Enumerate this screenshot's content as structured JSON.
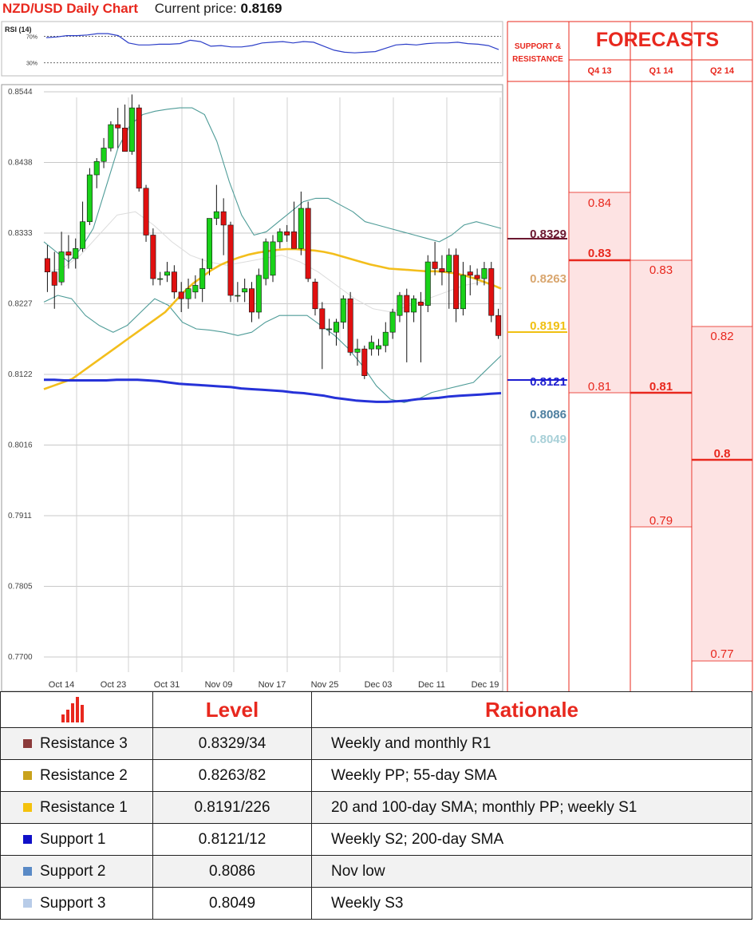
{
  "header": {
    "pair": "NZD/USD Daily Chart",
    "price_label": "Current price:",
    "price": "0.8169"
  },
  "chart_data": [
    {
      "type": "line",
      "title": "RSI (14)",
      "yticks": [
        "70%",
        "30%"
      ],
      "ylim": [
        20,
        85
      ],
      "series": [
        {
          "color": "#2d3fc8",
          "values": [
            68,
            69,
            71,
            71,
            72,
            74,
            74,
            71,
            60,
            57,
            57,
            58,
            58,
            59,
            64,
            62,
            55,
            56,
            54,
            54,
            56,
            60,
            61,
            62,
            60,
            62,
            61,
            55,
            49,
            46,
            45,
            46,
            47,
            52,
            57,
            58,
            57,
            59,
            60,
            60,
            61,
            59,
            58,
            56,
            50
          ]
        }
      ]
    },
    {
      "type": "candlestick",
      "ylim": [
        0.77,
        0.8544
      ],
      "yticks": [
        "0.8544",
        "0.8438",
        "0.8333",
        "0.8227",
        "0.8122",
        "0.8016",
        "0.7911",
        "0.7805",
        "0.7700"
      ],
      "xticks": [
        "Oct 14",
        "Oct 23",
        "Oct 31",
        "Nov 09",
        "Nov 17",
        "Nov 25",
        "Dec 03",
        "Dec 11",
        "Dec 19"
      ],
      "candles": [
        [
          0.8295,
          0.8315,
          0.8245,
          0.8275
        ],
        [
          0.8275,
          0.8305,
          0.822,
          0.8255
        ],
        [
          0.826,
          0.8335,
          0.8255,
          0.8305
        ],
        [
          0.8305,
          0.833,
          0.828,
          0.83
        ],
        [
          0.8295,
          0.8325,
          0.828,
          0.831
        ],
        [
          0.831,
          0.838,
          0.8305,
          0.835
        ],
        [
          0.835,
          0.843,
          0.8345,
          0.842
        ],
        [
          0.842,
          0.8445,
          0.84,
          0.844
        ],
        [
          0.844,
          0.8475,
          0.843,
          0.846
        ],
        [
          0.846,
          0.85,
          0.8455,
          0.8495
        ],
        [
          0.8495,
          0.852,
          0.846,
          0.849
        ],
        [
          0.849,
          0.8525,
          0.846,
          0.8455
        ],
        [
          0.8455,
          0.854,
          0.845,
          0.852
        ],
        [
          0.852,
          0.8525,
          0.8395,
          0.84
        ],
        [
          0.84,
          0.8405,
          0.832,
          0.833
        ],
        [
          0.833,
          0.834,
          0.8255,
          0.8265
        ],
        [
          0.8265,
          0.8275,
          0.8255,
          0.8265
        ],
        [
          0.827,
          0.829,
          0.826,
          0.8275
        ],
        [
          0.8275,
          0.8285,
          0.8235,
          0.8245
        ],
        [
          0.8245,
          0.826,
          0.8215,
          0.8235
        ],
        [
          0.8235,
          0.8265,
          0.822,
          0.825
        ],
        [
          0.8245,
          0.827,
          0.8235,
          0.8255
        ],
        [
          0.825,
          0.8295,
          0.823,
          0.828
        ],
        [
          0.828,
          0.835,
          0.827,
          0.8355
        ],
        [
          0.8355,
          0.8405,
          0.8345,
          0.8365
        ],
        [
          0.8365,
          0.8385,
          0.83,
          0.8345
        ],
        [
          0.8345,
          0.835,
          0.823,
          0.824
        ],
        [
          0.824,
          0.826,
          0.823,
          0.824
        ],
        [
          0.8245,
          0.8265,
          0.823,
          0.825
        ],
        [
          0.825,
          0.826,
          0.82,
          0.8215
        ],
        [
          0.8215,
          0.828,
          0.8205,
          0.827
        ],
        [
          0.8265,
          0.8325,
          0.8255,
          0.832
        ],
        [
          0.827,
          0.833,
          0.826,
          0.832
        ],
        [
          0.832,
          0.834,
          0.831,
          0.8335
        ],
        [
          0.8335,
          0.8345,
          0.832,
          0.833
        ],
        [
          0.8335,
          0.838,
          0.8315,
          0.831
        ],
        [
          0.831,
          0.8395,
          0.83,
          0.837
        ],
        [
          0.837,
          0.838,
          0.826,
          0.8265
        ],
        [
          0.826,
          0.8265,
          0.821,
          0.822
        ],
        [
          0.822,
          0.823,
          0.813,
          0.819
        ],
        [
          0.819,
          0.8205,
          0.818,
          0.819
        ],
        [
          0.8185,
          0.8205,
          0.8165,
          0.82
        ],
        [
          0.82,
          0.824,
          0.819,
          0.8235
        ],
        [
          0.8235,
          0.8245,
          0.815,
          0.8155
        ],
        [
          0.8155,
          0.8175,
          0.8135,
          0.816
        ],
        [
          0.816,
          0.8165,
          0.8115,
          0.812
        ],
        [
          0.816,
          0.818,
          0.815,
          0.817
        ],
        [
          0.816,
          0.8175,
          0.815,
          0.8165
        ],
        [
          0.8165,
          0.82,
          0.8155,
          0.8185
        ],
        [
          0.8185,
          0.822,
          0.8175,
          0.8215
        ],
        [
          0.821,
          0.8245,
          0.82,
          0.824
        ],
        [
          0.824,
          0.825,
          0.814,
          0.8215
        ],
        [
          0.8215,
          0.824,
          0.82,
          0.8235
        ],
        [
          0.823,
          0.8245,
          0.814,
          0.8225
        ],
        [
          0.8225,
          0.83,
          0.8215,
          0.829
        ],
        [
          0.829,
          0.832,
          0.827,
          0.828
        ],
        [
          0.828,
          0.83,
          0.8255,
          0.8275
        ],
        [
          0.8275,
          0.831,
          0.822,
          0.83
        ],
        [
          0.83,
          0.831,
          0.82,
          0.822
        ],
        [
          0.822,
          0.829,
          0.821,
          0.827
        ],
        [
          0.8275,
          0.8285,
          0.824,
          0.827
        ],
        [
          0.827,
          0.828,
          0.8255,
          0.8265
        ],
        [
          0.8265,
          0.829,
          0.8255,
          0.828
        ],
        [
          0.828,
          0.829,
          0.82,
          0.821
        ],
        [
          0.821,
          0.822,
          0.8175,
          0.818
        ]
      ],
      "lines": [
        {
          "color": "#f3be1c",
          "values": [
            0.81,
            0.8105,
            0.811,
            0.8115,
            0.8125,
            0.8135,
            0.8145,
            0.8155,
            0.8165,
            0.8175,
            0.8185,
            0.8195,
            0.8205,
            0.8215,
            0.823,
            0.8245,
            0.8258,
            0.8268,
            0.8278,
            0.8286,
            0.8292,
            0.8297,
            0.8301,
            0.8304,
            0.8306,
            0.8308,
            0.8309,
            0.8309,
            0.8308,
            0.8307,
            0.8305,
            0.8302,
            0.8298,
            0.8294,
            0.829,
            0.8286,
            0.8283,
            0.828,
            0.8279,
            0.8278,
            0.8277,
            0.8276,
            0.8276,
            0.8275,
            0.8273,
            0.827,
            0.8266,
            0.8261,
            0.8256,
            0.825
          ]
        },
        {
          "color": "#2632d8",
          "values": [
            0.8114,
            0.8114,
            0.8113,
            0.8113,
            0.8113,
            0.8113,
            0.8113,
            0.8114,
            0.8114,
            0.8114,
            0.8113,
            0.8112,
            0.811,
            0.8108,
            0.8107,
            0.8106,
            0.8105,
            0.8104,
            0.8103,
            0.8101,
            0.81,
            0.8099,
            0.8098,
            0.8097,
            0.8095,
            0.8094,
            0.8092,
            0.809,
            0.8087,
            0.8085,
            0.8083,
            0.8082,
            0.8081,
            0.8081,
            0.8082,
            0.8083,
            0.8085,
            0.8086,
            0.8087,
            0.8089,
            0.809,
            0.8091,
            0.8092,
            0.8093,
            0.8094
          ]
        },
        {
          "color": "#4f9c98",
          "values": [
            0.832,
            0.8305,
            0.829,
            0.831,
            0.834,
            0.84,
            0.846,
            0.8495,
            0.851,
            0.8515,
            0.8518,
            0.852,
            0.852,
            0.851,
            0.847,
            0.841,
            0.836,
            0.833,
            0.8335,
            0.835,
            0.8365,
            0.838,
            0.8385,
            0.8385,
            0.8375,
            0.8365,
            0.835,
            0.8345,
            0.834,
            0.8335,
            0.833,
            0.8325,
            0.832,
            0.833,
            0.8345,
            0.835,
            0.8345,
            0.834
          ]
        },
        {
          "color": "#4f9c98",
          "values": [
            0.823,
            0.824,
            0.8235,
            0.821,
            0.8195,
            0.8185,
            0.8195,
            0.8215,
            0.8235,
            0.8225,
            0.82,
            0.819,
            0.8188,
            0.8185,
            0.818,
            0.8185,
            0.82,
            0.821,
            0.821,
            0.821,
            0.8195,
            0.818,
            0.816,
            0.8135,
            0.8105,
            0.8085,
            0.808,
            0.8085,
            0.8095,
            0.81,
            0.8105,
            0.811,
            0.813,
            0.815
          ]
        },
        {
          "color": "#dcdcdc",
          "values": [
            0.8275,
            0.828,
            0.83,
            0.833,
            0.836,
            0.8365,
            0.8345,
            0.832,
            0.83,
            0.829,
            0.8285,
            0.829,
            0.8295,
            0.83,
            0.829,
            0.8275,
            0.8255,
            0.8235,
            0.822,
            0.8215,
            0.8225,
            0.8235,
            0.8245,
            0.8255,
            0.826,
            0.825
          ]
        }
      ]
    }
  ],
  "support_resistance": {
    "header": "SUPPORT & RESISTANCE",
    "levels": [
      {
        "label": "0.8329",
        "color": "#6b1830",
        "bold": true
      },
      {
        "label": "0.8263",
        "color": "#d9a66e",
        "bold": true
      },
      {
        "label": "0.8191",
        "color": "#f0c012",
        "bold": true
      },
      {
        "label": "0.8121",
        "color": "#1c1cd0",
        "bold": true
      },
      {
        "label": "0.8086",
        "color": "#4e7fa0",
        "bold": true
      },
      {
        "label": "0.8049",
        "color": "#a8d0d8",
        "bold": true
      }
    ]
  },
  "forecasts": {
    "title": "FORECASTS",
    "columns": [
      {
        "label": "Q4 13",
        "high": "0.84",
        "main": "0.83",
        "low": "0.81"
      },
      {
        "label": "Q1 14",
        "high": "0.83",
        "main": "0.81",
        "low": "0.79"
      },
      {
        "label": "Q2 14",
        "high": "0.82",
        "main": "0.8",
        "low": "0.77"
      }
    ]
  },
  "table": {
    "headers": [
      "Level",
      "Rationale"
    ],
    "rows": [
      {
        "name": "Resistance 3",
        "level": "0.8329/34",
        "rationale": "Weekly and monthly R1",
        "color": "#8b3a3a"
      },
      {
        "name": "Resistance 2",
        "level": "0.8263/82",
        "rationale": "Weekly PP; 55-day SMA",
        "color": "#c9a21c"
      },
      {
        "name": "Resistance 1",
        "level": "0.8191/226",
        "rationale": "20 and 100-day SMA; monthly PP; weekly S1",
        "color": "#f4c20d"
      },
      {
        "name": "Support 1",
        "level": "0.8121/12",
        "rationale": "Weekly S2; 200-day SMA",
        "color": "#1010c8"
      },
      {
        "name": "Support 2",
        "level": "0.8086",
        "rationale": "Nov low",
        "color": "#5a8ac6"
      },
      {
        "name": "Support 3",
        "level": "0.8049",
        "rationale": "Weekly S3",
        "color": "#b8cce8"
      }
    ]
  }
}
